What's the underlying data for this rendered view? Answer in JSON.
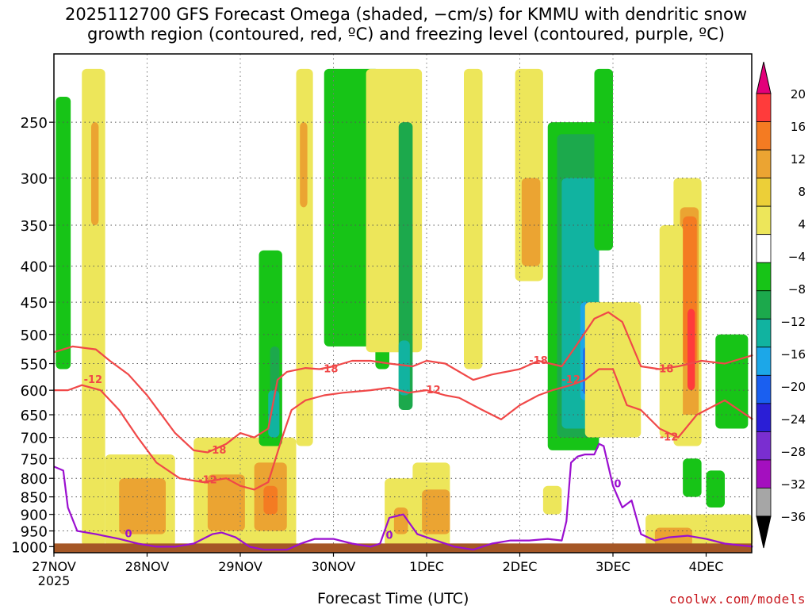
{
  "chart_data": {
    "type": "heatmap",
    "title_lines": [
      "2025112700 GFS Forecast Omega (shaded, −cm/s) for KMMU with dendritic snow",
      "growth region (contoured, red, ºC) and freezing level (contoured, purple, ºC)"
    ],
    "xlabel": "Forecast Time (UTC)",
    "ylabel": "",
    "credit": "coolwx.com/models",
    "x_ticks": [
      {
        "label": "27NOV",
        "sub": "2025",
        "day": 0
      },
      {
        "label": "28NOV",
        "sub": "",
        "day": 1
      },
      {
        "label": "29NOV",
        "sub": "",
        "day": 2
      },
      {
        "label": "30NOV",
        "sub": "",
        "day": 3
      },
      {
        "label": "1DEC",
        "sub": "",
        "day": 4
      },
      {
        "label": "2DEC",
        "sub": "",
        "day": 5
      },
      {
        "label": "3DEC",
        "sub": "",
        "day": 6
      },
      {
        "label": "4DEC",
        "sub": "",
        "day": 7
      }
    ],
    "xlim": [
      0,
      7.5
    ],
    "y_ticks": [
      250,
      300,
      350,
      400,
      450,
      500,
      550,
      600,
      650,
      700,
      750,
      800,
      850,
      900,
      950,
      1000
    ],
    "ylim": [
      1020,
      200
    ],
    "y_scale": "log-pressure",
    "grid": true,
    "colorbar": {
      "labels": [
        "20",
        "16",
        "12",
        "8",
        "4",
        "−4",
        "−8",
        "−12",
        "−16",
        "−20",
        "−24",
        "−28",
        "−32",
        "−36"
      ],
      "bins": [
        {
          "color": "#e3007a"
        },
        {
          "color": "#ff3b3b"
        },
        {
          "color": "#f47b22"
        },
        {
          "color": "#eba432"
        },
        {
          "color": "#eccf38"
        },
        {
          "color": "#ede65a"
        },
        {
          "color": "#ffffff"
        },
        {
          "color": "#17c417"
        },
        {
          "color": "#1ca94c"
        },
        {
          "color": "#11b3a0"
        },
        {
          "color": "#1ca7e8"
        },
        {
          "color": "#1a5ff0"
        },
        {
          "color": "#2a1ed6"
        },
        {
          "color": "#7a2ed0"
        },
        {
          "color": "#a40fbf"
        },
        {
          "color": "#a6a6a6"
        },
        {
          "color": "#000000"
        }
      ]
    },
    "shaded_areas": [
      {
        "color": "#ede65a",
        "x0": 0.3,
        "x1": 0.55,
        "p0": 210,
        "p1": 1000
      },
      {
        "color": "#eba432",
        "x0": 0.4,
        "x1": 0.48,
        "p0": 250,
        "p1": 350
      },
      {
        "color": "#ede65a",
        "x0": 0.55,
        "x1": 1.3,
        "p0": 740,
        "p1": 1000
      },
      {
        "color": "#eba432",
        "x0": 0.7,
        "x1": 1.2,
        "p0": 800,
        "p1": 960
      },
      {
        "color": "#17c417",
        "x0": 0.02,
        "x1": 0.18,
        "p0": 230,
        "p1": 560
      },
      {
        "color": "#ede65a",
        "x0": 1.5,
        "x1": 2.6,
        "p0": 700,
        "p1": 1000
      },
      {
        "color": "#eba432",
        "x0": 1.65,
        "x1": 2.05,
        "p0": 790,
        "p1": 950
      },
      {
        "color": "#eba432",
        "x0": 2.15,
        "x1": 2.5,
        "p0": 760,
        "p1": 950
      },
      {
        "color": "#f47b22",
        "x0": 2.25,
        "x1": 2.4,
        "p0": 820,
        "p1": 900
      },
      {
        "color": "#ede65a",
        "x0": 2.6,
        "x1": 2.78,
        "p0": 210,
        "p1": 720
      },
      {
        "color": "#eba432",
        "x0": 2.64,
        "x1": 2.72,
        "p0": 250,
        "p1": 330
      },
      {
        "color": "#17c417",
        "x0": 2.2,
        "x1": 2.45,
        "p0": 380,
        "p1": 720
      },
      {
        "color": "#1ca94c",
        "x0": 2.32,
        "x1": 2.42,
        "p0": 520,
        "p1": 700
      },
      {
        "color": "#11b3a0",
        "x0": 2.3,
        "x1": 2.42,
        "p0": 600,
        "p1": 700
      },
      {
        "color": "#17c417",
        "x0": 2.9,
        "x1": 3.5,
        "p0": 210,
        "p1": 520
      },
      {
        "color": "#17c417",
        "x0": 3.45,
        "x1": 3.6,
        "p0": 250,
        "p1": 560
      },
      {
        "color": "#ede65a",
        "x0": 3.35,
        "x1": 3.95,
        "p0": 210,
        "p1": 530
      },
      {
        "color": "#ede65a",
        "x0": 3.55,
        "x1": 3.9,
        "p0": 800,
        "p1": 1000
      },
      {
        "color": "#eba432",
        "x0": 3.65,
        "x1": 3.8,
        "p0": 880,
        "p1": 960
      },
      {
        "color": "#ede65a",
        "x0": 3.85,
        "x1": 4.25,
        "p0": 760,
        "p1": 1000
      },
      {
        "color": "#eba432",
        "x0": 3.95,
        "x1": 4.25,
        "p0": 830,
        "p1": 960
      },
      {
        "color": "#1ca94c",
        "x0": 3.7,
        "x1": 3.85,
        "p0": 250,
        "p1": 640
      },
      {
        "color": "#11b3a0",
        "x0": 3.7,
        "x1": 3.82,
        "p0": 510,
        "p1": 610
      },
      {
        "color": "#ede65a",
        "x0": 4.4,
        "x1": 4.6,
        "p0": 210,
        "p1": 560
      },
      {
        "color": "#ede65a",
        "x0": 4.95,
        "x1": 5.25,
        "p0": 210,
        "p1": 420
      },
      {
        "color": "#eba432",
        "x0": 5.02,
        "x1": 5.22,
        "p0": 300,
        "p1": 400
      },
      {
        "color": "#17c417",
        "x0": 5.3,
        "x1": 5.85,
        "p0": 250,
        "p1": 730
      },
      {
        "color": "#1ca94c",
        "x0": 5.4,
        "x1": 5.85,
        "p0": 260,
        "p1": 700
      },
      {
        "color": "#11b3a0",
        "x0": 5.45,
        "x1": 5.85,
        "p0": 300,
        "p1": 680
      },
      {
        "color": "#1ca7e8",
        "x0": 5.65,
        "x1": 5.85,
        "p0": 450,
        "p1": 620
      },
      {
        "color": "#1a5ff0",
        "x0": 5.68,
        "x1": 5.78,
        "p0": 520,
        "p1": 610
      },
      {
        "color": "#17c417",
        "x0": 5.8,
        "x1": 6.0,
        "p0": 210,
        "p1": 380
      },
      {
        "color": "#ede65a",
        "x0": 5.25,
        "x1": 5.45,
        "p0": 820,
        "p1": 900
      },
      {
        "color": "#ede65a",
        "x0": 5.7,
        "x1": 6.3,
        "p0": 450,
        "p1": 700
      },
      {
        "color": "#ede65a",
        "x0": 6.35,
        "x1": 7.5,
        "p0": 900,
        "p1": 1000
      },
      {
        "color": "#eba432",
        "x0": 6.45,
        "x1": 6.85,
        "p0": 940,
        "p1": 1000
      },
      {
        "color": "#ede65a",
        "x0": 6.65,
        "x1": 6.95,
        "p0": 300,
        "p1": 720
      },
      {
        "color": "#eba432",
        "x0": 6.72,
        "x1": 6.92,
        "p0": 330,
        "p1": 650
      },
      {
        "color": "#f47b22",
        "x0": 6.75,
        "x1": 6.9,
        "p0": 340,
        "p1": 550
      },
      {
        "color": "#ff3b3b",
        "x0": 6.8,
        "x1": 6.88,
        "p0": 460,
        "p1": 600
      },
      {
        "color": "#17c417",
        "x0": 7.1,
        "x1": 7.45,
        "p0": 500,
        "p1": 680
      },
      {
        "color": "#17c417",
        "x0": 6.75,
        "x1": 6.95,
        "p0": 750,
        "p1": 850
      },
      {
        "color": "#17c417",
        "x0": 7.0,
        "x1": 7.2,
        "p0": 780,
        "p1": 880
      },
      {
        "color": "#ede65a",
        "x0": 6.5,
        "x1": 6.75,
        "p0": 350,
        "p1": 700
      }
    ],
    "series": [
      {
        "name": "",
        "label": "-18",
        "color": "#f04848",
        "x": [
          0.0,
          0.2,
          0.45,
          0.6,
          0.8,
          1.0,
          1.3,
          1.5,
          1.65,
          1.85,
          2.0,
          2.15,
          2.3,
          2.4,
          2.5,
          2.7,
          2.85,
          3.0,
          3.2,
          3.4,
          3.6,
          3.85,
          4.0,
          4.2,
          4.5,
          4.7,
          5.0,
          5.2,
          5.45,
          5.6,
          5.8,
          5.95,
          6.1,
          6.3,
          6.5,
          6.7,
          6.95,
          7.2,
          7.5
        ],
        "p": [
          530,
          520,
          525,
          545,
          570,
          610,
          690,
          730,
          735,
          715,
          690,
          700,
          680,
          580,
          565,
          558,
          560,
          555,
          545,
          545,
          550,
          555,
          545,
          550,
          580,
          570,
          560,
          545,
          555,
          520,
          475,
          465,
          480,
          555,
          560,
          555,
          545,
          550,
          535
        ],
        "labels": [
          {
            "text": "-18",
            "x": 2.95,
            "p": 560
          },
          {
            "text": "-18",
            "x": 1.75,
            "p": 730
          },
          {
            "text": "-18",
            "x": 5.2,
            "p": 545
          },
          {
            "text": "-18",
            "x": 6.55,
            "p": 560
          }
        ]
      },
      {
        "name": "",
        "label": "-12",
        "color": "#f04848",
        "x": [
          0.0,
          0.15,
          0.3,
          0.5,
          0.7,
          0.9,
          1.1,
          1.35,
          1.6,
          1.85,
          2.0,
          2.15,
          2.3,
          2.45,
          2.55,
          2.7,
          2.9,
          3.1,
          3.4,
          3.6,
          3.8,
          4.0,
          4.2,
          4.35,
          4.6,
          4.8,
          5.0,
          5.2,
          5.35,
          5.55,
          5.7,
          5.85,
          6.0,
          6.15,
          6.3,
          6.5,
          6.7,
          6.9,
          7.2,
          7.5
        ],
        "p": [
          600,
          600,
          590,
          600,
          640,
          700,
          760,
          800,
          810,
          800,
          820,
          830,
          810,
          700,
          640,
          620,
          610,
          605,
          600,
          595,
          605,
          600,
          610,
          615,
          640,
          660,
          630,
          610,
          600,
          590,
          580,
          560,
          560,
          630,
          640,
          680,
          700,
          650,
          620,
          660
        ],
        "labels": [
          {
            "text": "-12",
            "x": 0.42,
            "p": 580
          },
          {
            "text": "-12",
            "x": 1.65,
            "p": 805
          },
          {
            "text": "-12",
            "x": 4.05,
            "p": 600
          },
          {
            "text": "-12",
            "x": 5.55,
            "p": 580
          },
          {
            "text": "-12",
            "x": 6.6,
            "p": 700
          }
        ]
      },
      {
        "name": "",
        "label": "0",
        "color": "#9b0fd0",
        "x": [
          0.0,
          0.1,
          0.15,
          0.25,
          0.45,
          0.7,
          0.9,
          1.1,
          1.3,
          1.5,
          1.7,
          1.8,
          1.95,
          2.1,
          2.25,
          2.5,
          2.65,
          2.8,
          3.0,
          3.2,
          3.4,
          3.5,
          3.6,
          3.75,
          3.9,
          4.1,
          4.3,
          4.5,
          4.7,
          4.9,
          5.1,
          5.3,
          5.45,
          5.5,
          5.55,
          5.62,
          5.7,
          5.8,
          5.85,
          5.9,
          6.0,
          6.1,
          6.2,
          6.3,
          6.45,
          6.6,
          6.8,
          7.0,
          7.2,
          7.5
        ],
        "p": [
          770,
          780,
          880,
          950,
          960,
          975,
          990,
          1000,
          1000,
          990,
          960,
          955,
          970,
          1000,
          1010,
          1010,
          990,
          975,
          975,
          990,
          1000,
          990,
          910,
          900,
          960,
          980,
          1000,
          1010,
          990,
          980,
          980,
          975,
          980,
          920,
          760,
          745,
          740,
          740,
          715,
          720,
          820,
          880,
          860,
          960,
          980,
          970,
          965,
          975,
          990,
          1000
        ],
        "labels": [
          {
            "text": "0",
            "x": 0.8,
            "p": 960
          },
          {
            "text": "0",
            "x": 3.6,
            "p": 965
          },
          {
            "text": "0",
            "x": 6.05,
            "p": 815
          }
        ]
      }
    ],
    "ground_color": "#a55726"
  }
}
